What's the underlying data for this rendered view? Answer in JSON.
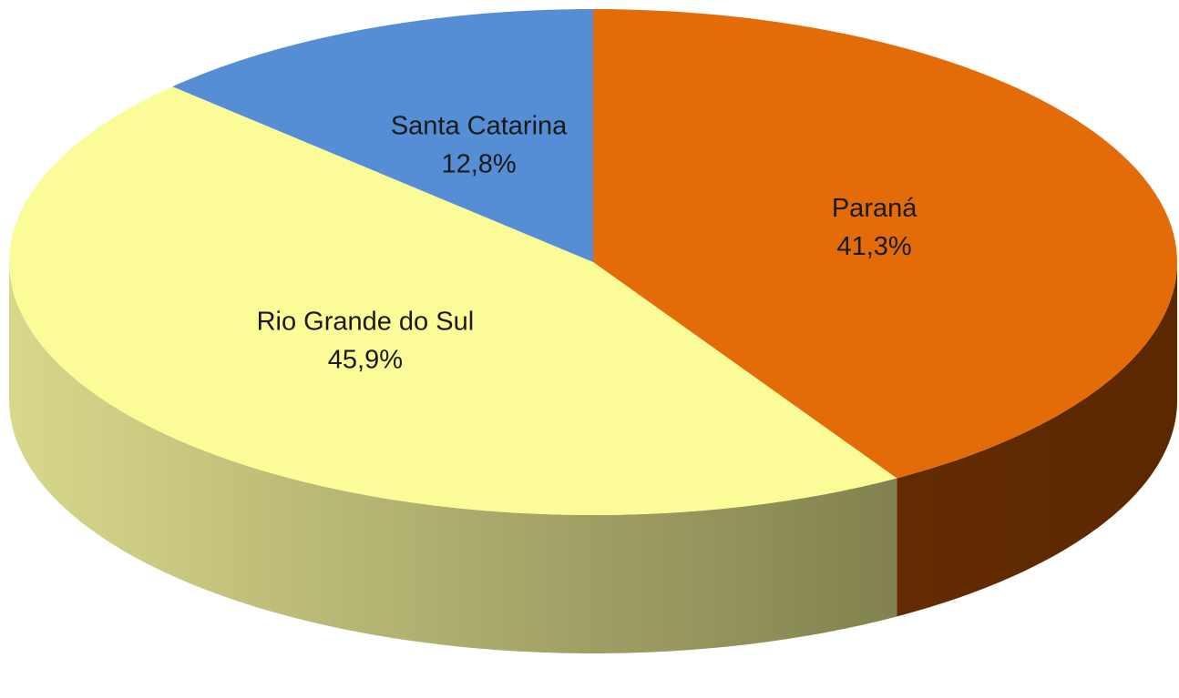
{
  "chart_data": {
    "type": "pie",
    "categories": [
      "Paraná",
      "Rio Grande do Sul",
      "Santa Catarina"
    ],
    "values": [
      41.3,
      45.9,
      12.8
    ],
    "value_labels": [
      "41,3%",
      "45,9%",
      "12,8%"
    ],
    "colors": [
      "#e36c09",
      "#fbfb97",
      "#558ed5"
    ],
    "side_colors": [
      [
        "#7a3503",
        "#5c2800"
      ],
      [
        "#d9d98c",
        "#66663d"
      ],
      [
        "#3a6aa8",
        "#2b5080"
      ]
    ]
  }
}
